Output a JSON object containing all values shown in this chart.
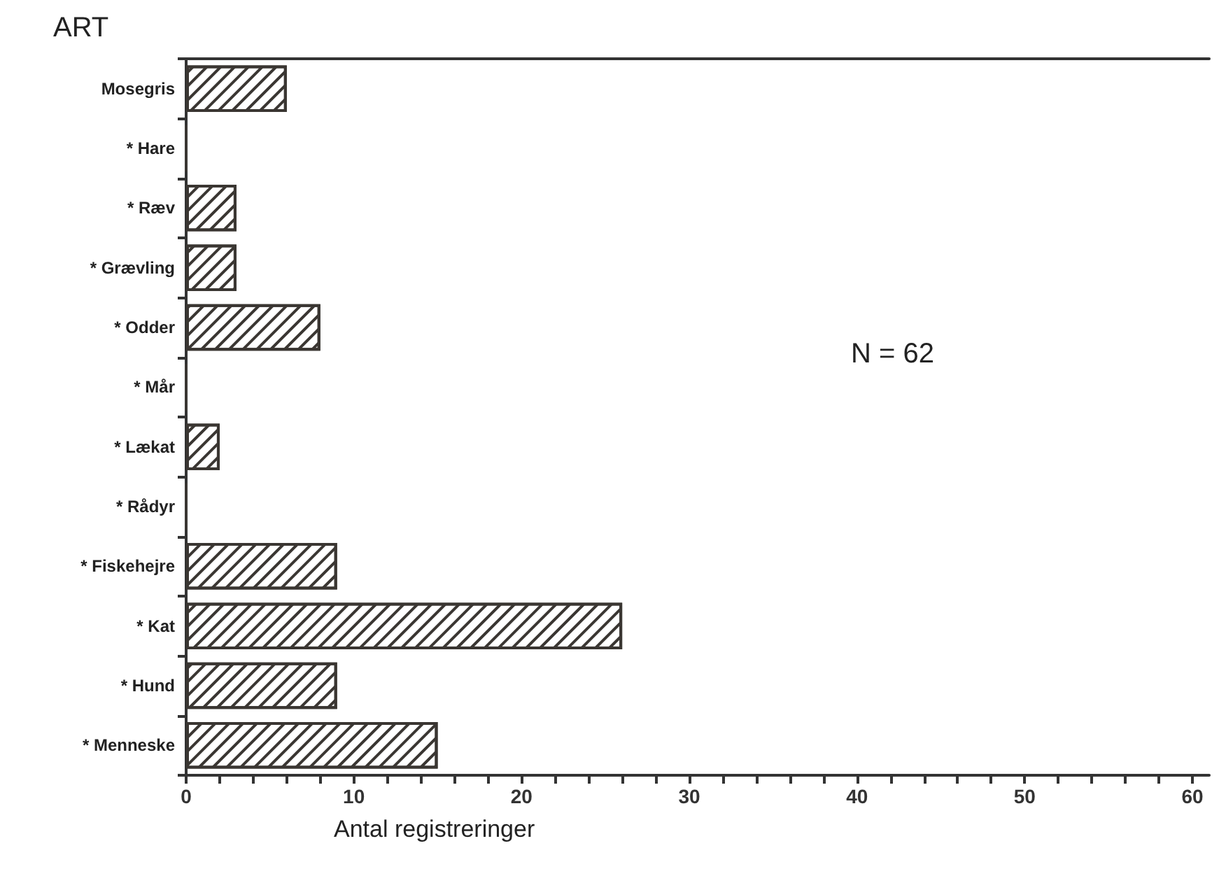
{
  "chart_data": {
    "type": "bar",
    "orientation": "horizontal",
    "ylabel": "ART",
    "xlabel": "Antal registreringer",
    "categories": [
      "Mosegris",
      "* Hare",
      "* Ræv",
      "* Grævling",
      "* Odder",
      "* Mår",
      "* Lækat",
      "* Rådyr",
      "* Fiskehejre",
      "* Kat",
      "* Hund",
      "* Menneske"
    ],
    "values": [
      6,
      0,
      3,
      3,
      8,
      0,
      2,
      0,
      9,
      26,
      9,
      15
    ],
    "color": "#3a3632",
    "xlim": [
      0,
      61
    ],
    "xticks": [
      0,
      {
        "value": 2,
        "label": null
      },
      {
        "value": 4,
        "label": null
      },
      {
        "value": 6,
        "label": null
      },
      {
        "value": 8,
        "label": null
      },
      10,
      {
        "value": 12,
        "label": null
      },
      {
        "value": 14,
        "label": null
      },
      {
        "value": 16,
        "label": null
      },
      {
        "value": 18,
        "label": null
      },
      20,
      {
        "value": 22,
        "label": null
      },
      {
        "value": 24,
        "label": null
      },
      {
        "value": 26,
        "label": null
      },
      {
        "value": 28,
        "label": null
      },
      30,
      {
        "value": 32,
        "label": null
      },
      {
        "value": 34,
        "label": null
      },
      {
        "value": 36,
        "label": null
      },
      {
        "value": 38,
        "label": null
      },
      40,
      {
        "value": 42,
        "label": null
      },
      {
        "value": 44,
        "label": null
      },
      {
        "value": 46,
        "label": null
      },
      {
        "value": 48,
        "label": null
      },
      50,
      {
        "value": 52,
        "label": null
      },
      {
        "value": 54,
        "label": null
      },
      {
        "value": 56,
        "label": null
      },
      {
        "value": 58,
        "label": null
      },
      60
    ],
    "annotations": [
      "N = 62"
    ]
  }
}
